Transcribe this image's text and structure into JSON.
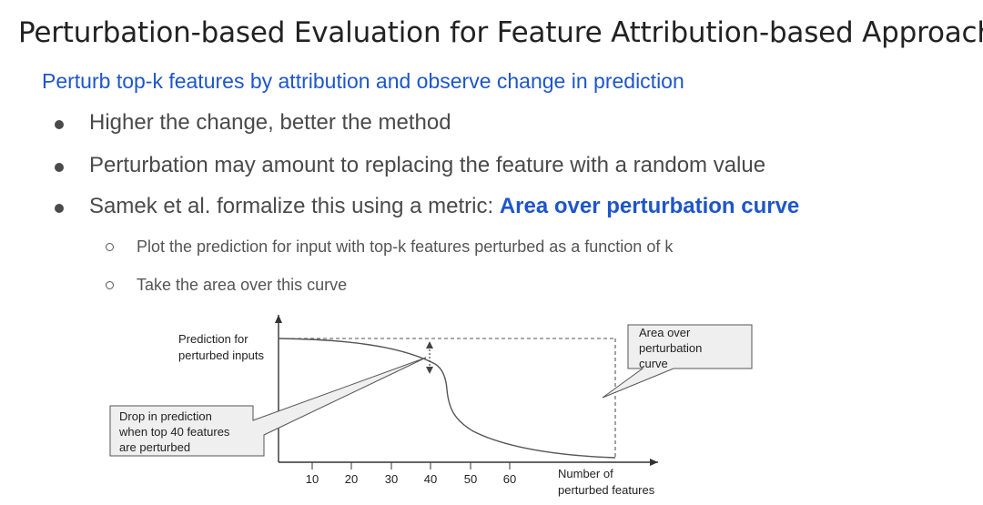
{
  "title": "Perturbation-based Evaluation for Feature Attribution-based Approaches",
  "subtitle": "Perturb top-k features by attribution and observe change in prediction",
  "bullets": [
    {
      "text": "Higher the change, better the method"
    },
    {
      "text": "Perturbation may amount to replacing the feature with a random value"
    },
    {
      "text": "Samek et al. formalize this using a metric: ",
      "emphasis": "Area over perturbation curve"
    }
  ],
  "sub_bullets": [
    {
      "text": "Plot the prediction for input with top-k features perturbed as a function of k"
    },
    {
      "text": "Take the area over this curve"
    }
  ],
  "diagram": {
    "y_axis_label_line1": "Prediction for",
    "y_axis_label_line2": "perturbed inputs",
    "x_axis_label_line1": "Number of",
    "x_axis_label_line2": "perturbed features",
    "x_ticks": [
      "10",
      "20",
      "30",
      "40",
      "50",
      "60"
    ],
    "callout_area_line1": "Area over",
    "callout_area_line2": "perturbation",
    "callout_area_line3": "curve",
    "callout_drop_line1": "Drop in prediction",
    "callout_drop_line2": "when top 40 features",
    "callout_drop_line3": "are perturbed"
  },
  "colors": {
    "accent_blue": "#1e56c8",
    "body_text": "#4a4a4a",
    "callout_fill": "#efefef",
    "line": "#555555"
  }
}
